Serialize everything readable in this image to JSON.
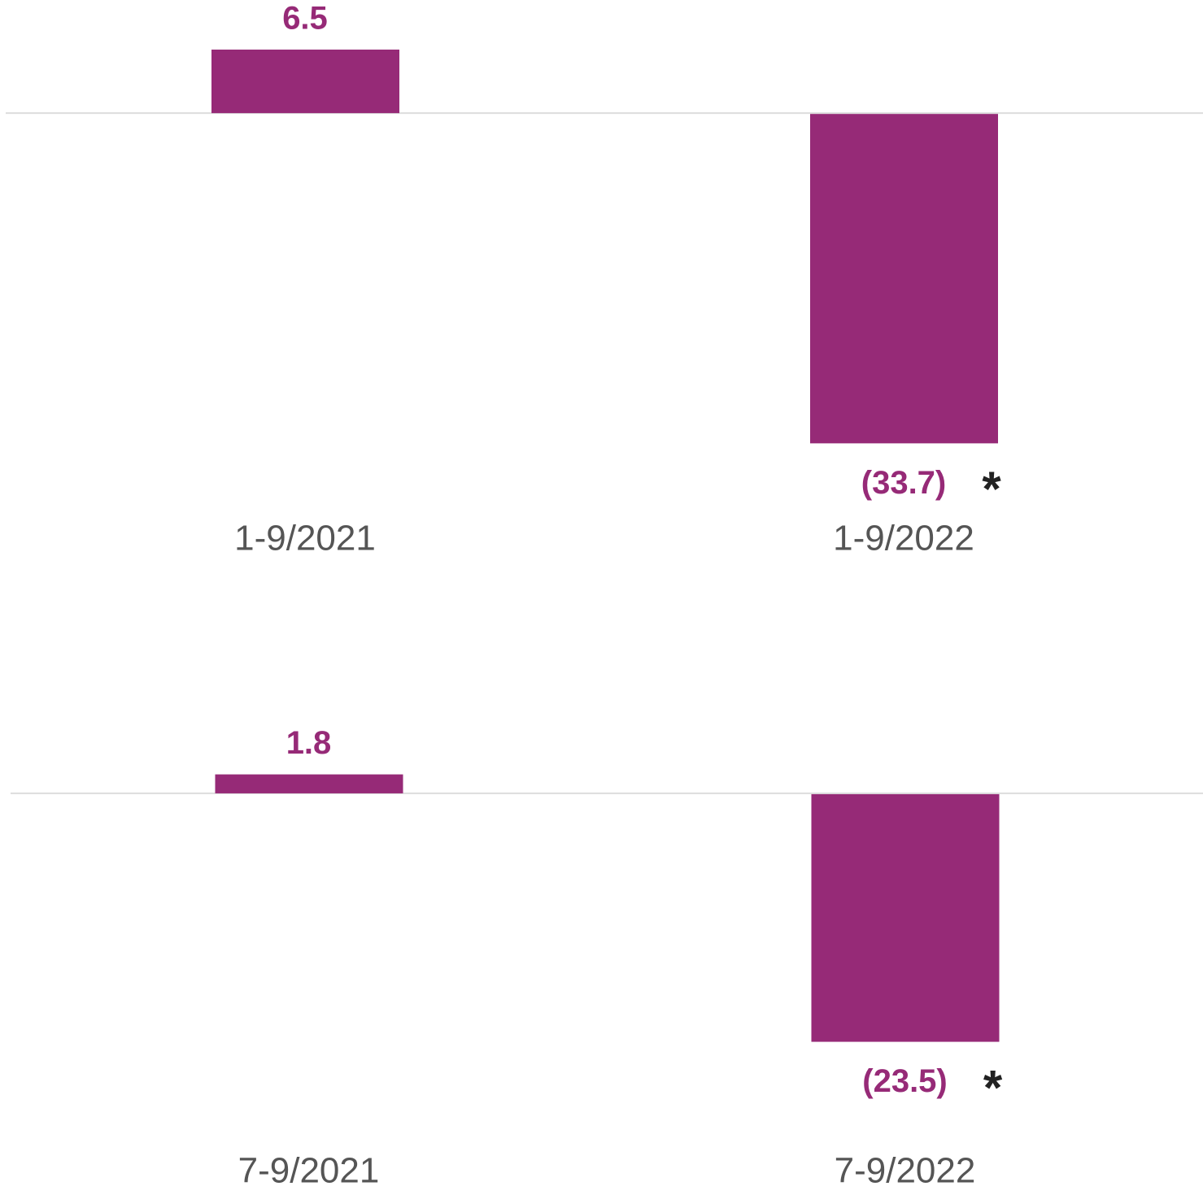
{
  "chart_data": [
    {
      "type": "bar",
      "categories": [
        "1-9/2021",
        "1-9/2022"
      ],
      "values": [
        6.5,
        -33.7
      ],
      "value_labels": [
        "6.5",
        "(33.7)"
      ],
      "annotation": "*",
      "color": "#962a77",
      "ylim": [
        -35,
        7
      ]
    },
    {
      "type": "bar",
      "categories": [
        "7-9/2021",
        "7-9/2022"
      ],
      "values": [
        1.8,
        -23.5
      ],
      "value_labels": [
        "1.8",
        "(23.5)"
      ],
      "annotation": "*",
      "color": "#962a77",
      "ylim": [
        -25,
        2
      ]
    }
  ]
}
